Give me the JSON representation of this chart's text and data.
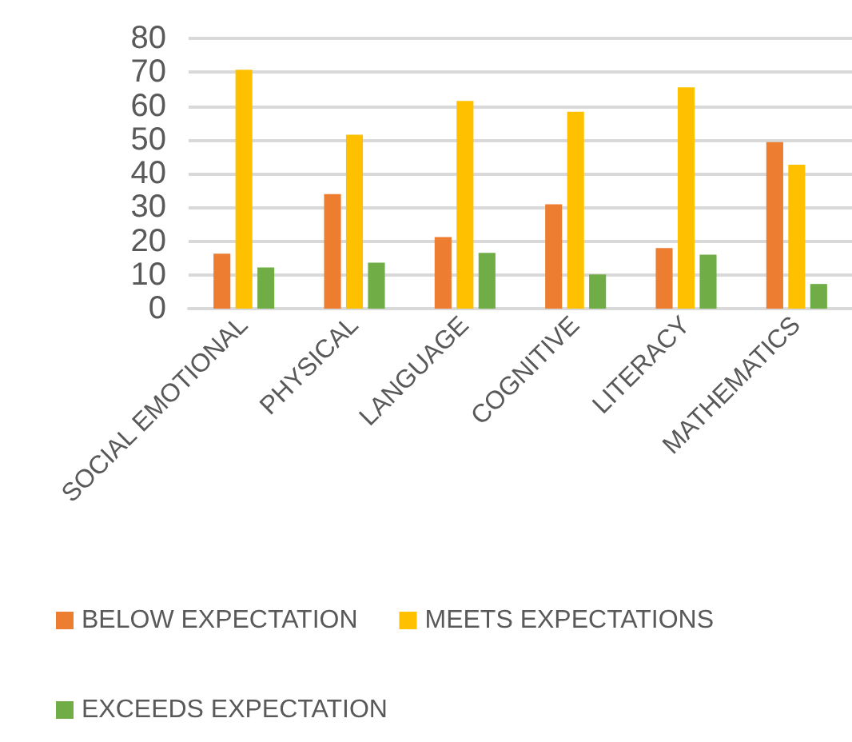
{
  "chart_data": {
    "type": "bar",
    "categories": [
      "SOCIAL EMOTIONAL",
      "PHYSICAL",
      "LANGUAGE",
      "COGNITIVE",
      "LITERACY",
      "MATHEMATICS"
    ],
    "series": [
      {
        "name": "BELOW EXPECTATION",
        "color": "#ed7d31",
        "values": [
          16.3,
          33.9,
          21.2,
          30.9,
          17.9,
          49.3
        ]
      },
      {
        "name": "MEETS EXPECTATIONS",
        "color": "#ffc000",
        "values": [
          70.7,
          51.5,
          61.5,
          58.3,
          65.5,
          42.6
        ]
      },
      {
        "name": "EXCEEDS EXPECTATION",
        "color": "#70ad47",
        "values": [
          12.2,
          13.6,
          16.5,
          10.1,
          16.0,
          7.3
        ]
      }
    ],
    "ylim": [
      0,
      80
    ],
    "yticks": [
      0,
      10,
      20,
      30,
      40,
      50,
      60,
      70,
      80
    ],
    "grid": "y",
    "legend": "bottom"
  }
}
